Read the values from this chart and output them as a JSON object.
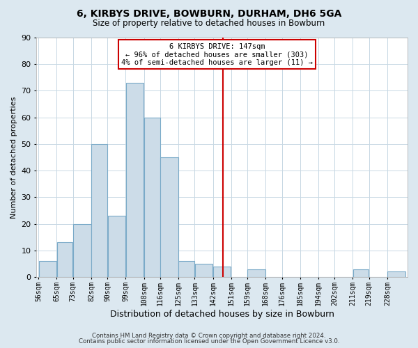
{
  "title": "6, KIRBYS DRIVE, BOWBURN, DURHAM, DH6 5GA",
  "subtitle": "Size of property relative to detached houses in Bowburn",
  "xlabel": "Distribution of detached houses by size in Bowburn",
  "ylabel": "Number of detached properties",
  "footer1": "Contains HM Land Registry data © Crown copyright and database right 2024.",
  "footer2": "Contains public sector information licensed under the Open Government Licence v3.0.",
  "bin_labels": [
    "56sqm",
    "65sqm",
    "73sqm",
    "82sqm",
    "90sqm",
    "99sqm",
    "108sqm",
    "116sqm",
    "125sqm",
    "133sqm",
    "142sqm",
    "151sqm",
    "159sqm",
    "168sqm",
    "176sqm",
    "185sqm",
    "194sqm",
    "202sqm",
    "211sqm",
    "219sqm",
    "228sqm"
  ],
  "bar_heights": [
    6,
    13,
    20,
    50,
    23,
    73,
    60,
    45,
    6,
    5,
    4,
    0,
    3,
    0,
    0,
    0,
    0,
    0,
    3,
    0,
    2
  ],
  "bar_color": "#ccdce8",
  "bar_edge_color": "#7aaac8",
  "subject_value": 147,
  "bin_edges": [
    56,
    65,
    73,
    82,
    90,
    99,
    108,
    116,
    125,
    133,
    142,
    151,
    159,
    168,
    176,
    185,
    194,
    202,
    211,
    219,
    228,
    237
  ],
  "vline_color": "#cc0000",
  "annotation_text_line1": "6 KIRBYS DRIVE: 147sqm",
  "annotation_text_line2": "← 96% of detached houses are smaller (303)",
  "annotation_text_line3": "4% of semi-detached houses are larger (11) →",
  "annotation_box_color": "#ffffff",
  "annotation_box_edge": "#cc0000",
  "ylim": [
    0,
    90
  ],
  "yticks": [
    0,
    10,
    20,
    30,
    40,
    50,
    60,
    70,
    80,
    90
  ],
  "bg_color": "#dce8f0",
  "plot_bg_color": "#ffffff",
  "grid_color": "#c8d8e4"
}
